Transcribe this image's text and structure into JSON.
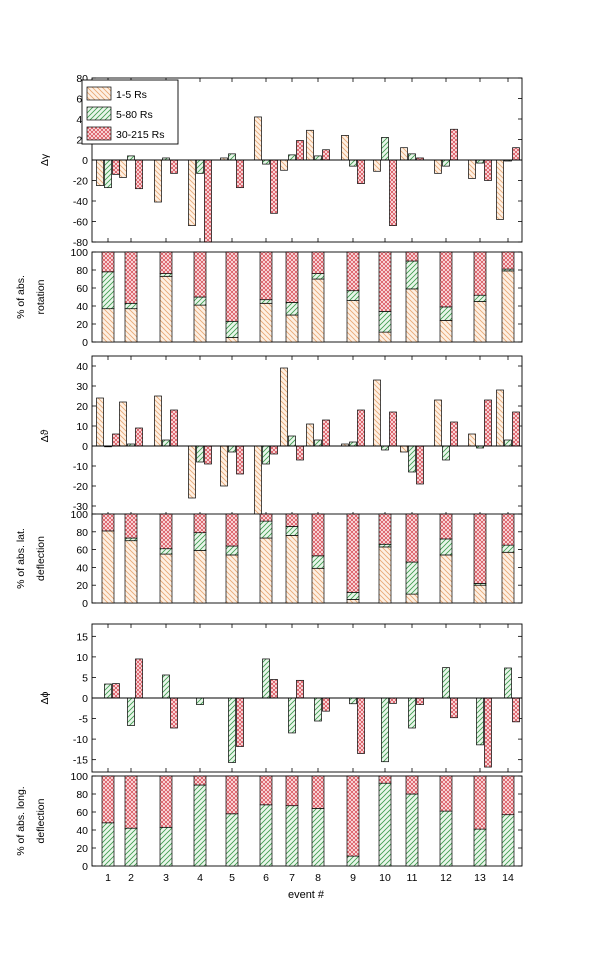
{
  "colors": {
    "series1": "#e8a772",
    "series1_fill": "#fdf0e4",
    "series2": "#3d9b4d",
    "series2_fill": "#e9f6ea",
    "series3": "#d43f4a",
    "series3_fill": "#fde6e7",
    "axis": "#000000"
  },
  "legend": {
    "s1": "1-5 Rs",
    "s2": "5-80 Rs",
    "s3": "30-215 Rs"
  },
  "axes": {
    "xlabel": "event #",
    "p1_ylabel": "Δγ",
    "p2_ylabel1": "% of abs.",
    "p2_ylabel2": "rotation",
    "p3_ylabel": "Δϑ",
    "p4_ylabel1": "% of abs. lat.",
    "p4_ylabel2": "deflection",
    "p5_ylabel": "Δϕ",
    "p6_ylabel1": "% of abs. long.",
    "p6_ylabel2": "deflection"
  },
  "chart_data": [
    {
      "type": "bar",
      "panel": "delta-gamma",
      "ylabel": "Δγ",
      "ylim": [
        -80,
        80
      ],
      "yticks": [
        -80,
        -60,
        -40,
        -20,
        0,
        20,
        40,
        60,
        80
      ],
      "categories": [
        1,
        2,
        3,
        4,
        5,
        6,
        7,
        8,
        9,
        10,
        11,
        12,
        13,
        14
      ],
      "series": [
        {
          "name": "1-5 Rs",
          "values": [
            -25,
            -17,
            -41,
            -64,
            2,
            42,
            -10,
            29,
            24,
            -11,
            12,
            -13,
            -18,
            -58
          ]
        },
        {
          "name": "5-80 Rs",
          "values": [
            -27,
            4,
            2,
            -13,
            6,
            -4,
            5,
            4,
            -6,
            22,
            6,
            -6,
            -3,
            -1
          ]
        },
        {
          "name": "30-215 Rs",
          "values": [
            -14,
            -28,
            -13,
            -80,
            -27,
            -52,
            19,
            10,
            -23,
            -64,
            2,
            30,
            -20,
            12
          ]
        }
      ]
    },
    {
      "type": "bar",
      "stacked": true,
      "panel": "percent-abs-rotation",
      "ylabel": "% of abs. rotation",
      "ylim": [
        0,
        100
      ],
      "yticks": [
        0,
        20,
        40,
        60,
        80,
        100
      ],
      "categories": [
        1,
        2,
        3,
        4,
        5,
        6,
        7,
        8,
        9,
        10,
        11,
        12,
        13,
        14
      ],
      "series": [
        {
          "name": "1-5 Rs",
          "values": [
            37,
            37,
            73,
            41,
            5,
            43,
            30,
            70,
            46,
            11,
            59,
            24,
            45,
            79
          ]
        },
        {
          "name": "5-80 Rs",
          "values": [
            41,
            6,
            3,
            9,
            18,
            4,
            14,
            6,
            11,
            23,
            31,
            15,
            7,
            2
          ]
        },
        {
          "name": "30-215 Rs",
          "values": [
            22,
            57,
            24,
            50,
            77,
            53,
            56,
            24,
            43,
            66,
            10,
            61,
            48,
            19
          ]
        }
      ]
    },
    {
      "type": "bar",
      "panel": "delta-theta",
      "ylabel": "Δϑ",
      "ylim": [
        -35,
        45
      ],
      "yticks": [
        -30,
        -20,
        -10,
        0,
        10,
        20,
        30,
        40
      ],
      "categories": [
        1,
        2,
        3,
        4,
        5,
        6,
        7,
        8,
        9,
        10,
        11,
        12,
        13,
        14
      ],
      "series": [
        {
          "name": "1-5 Rs",
          "values": [
            24,
            22,
            25,
            -26,
            -20,
            -35,
            39,
            11,
            1,
            33,
            -3,
            23,
            6,
            28
          ]
        },
        {
          "name": "5-80 Rs",
          "values": [
            0,
            1,
            3,
            -8,
            -3,
            -9,
            5,
            3,
            2,
            -2,
            -13,
            -7,
            -1,
            3
          ]
        },
        {
          "name": "30-215 Rs",
          "values": [
            6,
            9,
            18,
            -9,
            -14,
            -4,
            -7,
            13,
            18,
            17,
            -19,
            12,
            23,
            17
          ]
        }
      ]
    },
    {
      "type": "bar",
      "stacked": true,
      "panel": "percent-abs-lat-deflection",
      "ylabel": "% of abs. lat. deflection",
      "ylim": [
        0,
        100
      ],
      "yticks": [
        0,
        20,
        40,
        60,
        80,
        100
      ],
      "categories": [
        1,
        2,
        3,
        4,
        5,
        6,
        7,
        8,
        9,
        10,
        11,
        12,
        13,
        14
      ],
      "series": [
        {
          "name": "1-5 Rs",
          "values": [
            81,
            70,
            55,
            59,
            54,
            73,
            76,
            39,
            4,
            63,
            10,
            54,
            20,
            57
          ]
        },
        {
          "name": "5-80 Rs",
          "values": [
            0,
            3,
            6,
            20,
            10,
            19,
            10,
            14,
            8,
            3,
            36,
            18,
            2,
            8
          ]
        },
        {
          "name": "30-215 Rs",
          "values": [
            19,
            27,
            39,
            21,
            36,
            8,
            14,
            47,
            88,
            34,
            54,
            28,
            78,
            35
          ]
        }
      ]
    },
    {
      "type": "bar",
      "panel": "delta-phi",
      "ylabel": "Δϕ",
      "ylim": [
        -18,
        18
      ],
      "yticks": [
        -15,
        -10,
        -5,
        0,
        5,
        10,
        15
      ],
      "categories": [
        1,
        2,
        3,
        4,
        5,
        6,
        7,
        8,
        9,
        10,
        11,
        12,
        13,
        14
      ],
      "series": [
        {
          "name": "1-5 Rs",
          "values": [
            0,
            0,
            0,
            0,
            0,
            0,
            0,
            0,
            0,
            0,
            0,
            0,
            0,
            0
          ]
        },
        {
          "name": "5-80 Rs",
          "values": [
            3.4,
            -6.7,
            5.6,
            -1.6,
            -15.7,
            9.5,
            -8.5,
            -5.6,
            -1.4,
            -15.5,
            -7.3,
            7.4,
            -11.4,
            7.3
          ]
        },
        {
          "name": "30-215 Rs",
          "values": [
            3.5,
            9.5,
            -7.3,
            0,
            -11.8,
            4.5,
            4.3,
            -3.2,
            -13.5,
            -1.3,
            -1.6,
            -4.8,
            -16.8,
            -5.8
          ]
        }
      ]
    },
    {
      "type": "bar",
      "stacked": true,
      "panel": "percent-abs-long-deflection",
      "ylabel": "% of abs. long. deflection",
      "ylim": [
        0,
        100
      ],
      "yticks": [
        0,
        20,
        40,
        60,
        80,
        100
      ],
      "categories": [
        1,
        2,
        3,
        4,
        5,
        6,
        7,
        8,
        9,
        10,
        11,
        12,
        13,
        14
      ],
      "series": [
        {
          "name": "1-5 Rs",
          "values": [
            0,
            0,
            0,
            0,
            0,
            0,
            0,
            0,
            0,
            0,
            0,
            0,
            0,
            0
          ]
        },
        {
          "name": "5-80 Rs",
          "values": [
            48,
            42,
            43,
            90,
            58,
            68,
            67,
            64,
            11,
            92,
            80,
            61,
            41,
            57
          ]
        },
        {
          "name": "30-215 Rs",
          "values": [
            52,
            58,
            57,
            10,
            42,
            32,
            33,
            36,
            89,
            8,
            20,
            39,
            59,
            43
          ]
        }
      ]
    }
  ]
}
